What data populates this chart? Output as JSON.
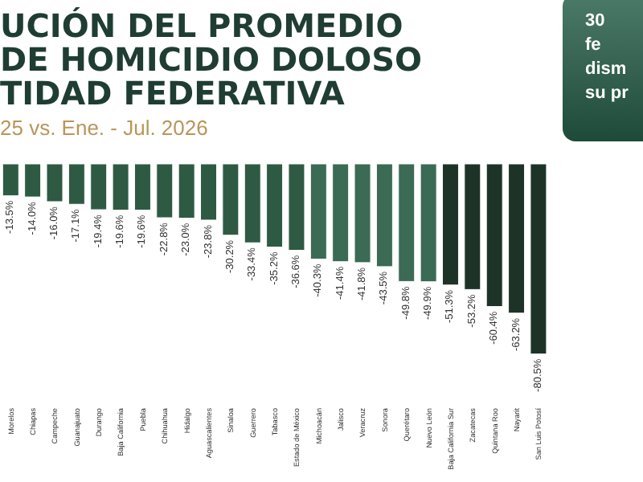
{
  "chart_data": {
    "type": "bar",
    "title": "UCIÓN DEL PROMEDIO\nDE HOMICIDIO DOLOSO\nTIDAD FEDERATIVA",
    "subtitle": "25 vs. Ene. - Jul. 2026",
    "annotations": [
      "30\nfe\ndism\nsu pr"
    ],
    "value_labels": [
      "-13.5%",
      "-14.0%",
      "-16.0%",
      "-17.1%",
      "-19.4%",
      "-19.6%",
      "-19.6%",
      "-22.8%",
      "-23.0%",
      "-23.8%",
      "-30.2%",
      "-33.4%",
      "-35.2%",
      "-36.6%",
      "-40.3%",
      "-41.4%",
      "-41.8%",
      "-43.5%",
      "-49.8%",
      "-49.9%",
      "-51.3%",
      "-53.2%",
      "-60.4%",
      "-63.2%",
      "-80.5%"
    ],
    "categories": [
      "Morelos",
      "Chiapas",
      "Campeche",
      "Guanajuato",
      "Durango",
      "Baja California",
      "Puebla",
      "Chihuahua",
      "Hidalgo",
      "Aguascalientes",
      "Sinaloa",
      "Guerrero",
      "Tabasco",
      "Estado de México",
      "Michoacán",
      "Jalisco",
      "Veracruz",
      "Sonora",
      "Querétaro",
      "Nuevo León",
      "Baja California Sur",
      "Zacatecas",
      "Quintana Roo",
      "Nayarit",
      "San Luis Potosí"
    ],
    "values": [
      -13.5,
      -14.0,
      -16.0,
      -17.1,
      -19.4,
      -19.6,
      -19.6,
      -22.8,
      -23.0,
      -23.8,
      -30.2,
      -33.4,
      -35.2,
      -36.6,
      -40.3,
      -41.4,
      -41.8,
      -43.5,
      -49.8,
      -49.9,
      -51.3,
      -53.2,
      -60.4,
      -63.2,
      -80.5
    ],
    "colors": [
      "#2e5a44",
      "#2e5a44",
      "#2e5a44",
      "#2e5a44",
      "#2e5a44",
      "#2e5a44",
      "#2e5a44",
      "#2e5a44",
      "#2e5a44",
      "#2e5a44",
      "#2e5a44",
      "#2e5a44",
      "#2e5a44",
      "#2e5a44",
      "#3b6a55",
      "#3b6a55",
      "#3b6a55",
      "#3b6a55",
      "#3b6a55",
      "#3b6a55",
      "#1d3327",
      "#1d3327",
      "#1d3327",
      "#1d3327",
      "#1d3327"
    ]
  }
}
